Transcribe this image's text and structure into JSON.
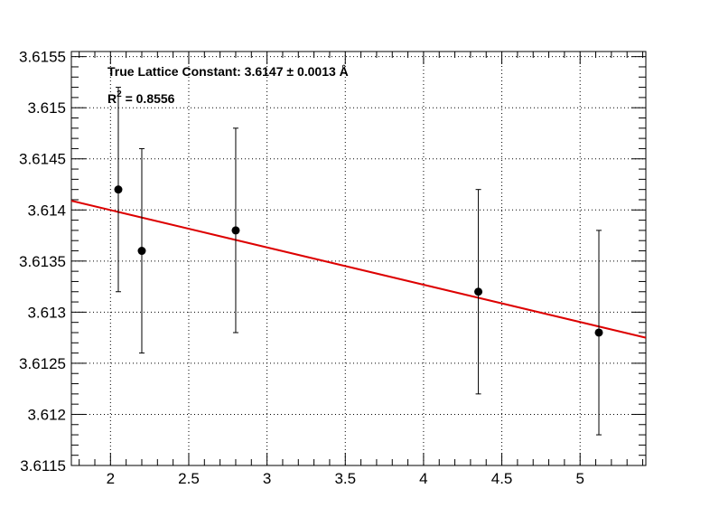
{
  "chart_data": {
    "type": "scatter",
    "xlim": [
      1.75,
      5.42
    ],
    "ylim": [
      3.6115,
      3.61555
    ],
    "x_ticks": [
      2,
      2.5,
      3,
      3.5,
      4,
      4.5,
      5
    ],
    "x_tick_labels": [
      "2",
      "2.5",
      "3",
      "3.5",
      "4",
      "4.5",
      "5"
    ],
    "y_ticks": [
      3.6115,
      3.612,
      3.6125,
      3.613,
      3.6135,
      3.614,
      3.6145,
      3.615,
      3.6155
    ],
    "y_tick_labels": [
      "3.6115",
      "3.612",
      "3.6125",
      "3.613",
      "3.6135",
      "3.614",
      "3.6145",
      "3.615",
      "3.6155"
    ],
    "grid": true,
    "series": [
      {
        "points": [
          {
            "x": 2.05,
            "y": 3.6142,
            "err": 0.001
          },
          {
            "x": 2.2,
            "y": 3.6136,
            "err": 0.001
          },
          {
            "x": 2.8,
            "y": 3.6138,
            "err": 0.001
          },
          {
            "x": 4.35,
            "y": 3.6132,
            "err": 0.001
          },
          {
            "x": 5.12,
            "y": 3.6128,
            "err": 0.001
          }
        ],
        "color": "#000000"
      }
    ],
    "fit": {
      "type": "linear",
      "x_start": 1.75,
      "y_start": 3.61409,
      "x_end": 5.42,
      "y_end": 3.61275,
      "color": "#dd0000"
    },
    "annotations": {
      "line1": "True Lattice Constant: 3.6147 ± 0.0013  Å",
      "r_prefix": "R",
      "r_sup": "2",
      "r_suffix": " = 0.8556"
    }
  }
}
